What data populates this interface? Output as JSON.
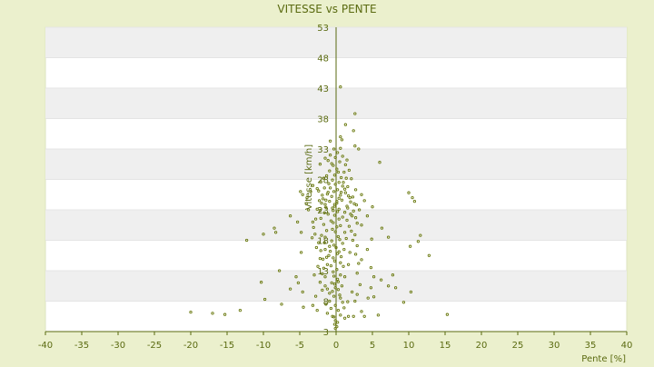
{
  "chart_data": {
    "type": "scatter",
    "title": "VITESSE vs PENTE",
    "xlabel": "Pente [%]",
    "ylabel": "Vitesse [km/h]",
    "xlim": [
      -40,
      40
    ],
    "ylim": [
      3,
      53
    ],
    "x_ticks": [
      -40,
      -35,
      -30,
      -25,
      -20,
      -15,
      -10,
      -5,
      0,
      5,
      10,
      15,
      20,
      25,
      30,
      35,
      40
    ],
    "y_ticks": [
      3,
      8,
      13,
      18,
      23,
      28,
      33,
      38,
      43,
      48,
      53
    ],
    "x_tick_labels": [
      "-40",
      "-35",
      "-30",
      "-25",
      "-20",
      "-15",
      "-10",
      "-5",
      "0",
      "5",
      "10",
      "15",
      "20",
      "25",
      "30",
      "35",
      "40"
    ],
    "y_tick_labels": [
      "3",
      "8",
      "13",
      "18",
      "23",
      "28",
      "33",
      "38",
      "43",
      "48",
      "53"
    ],
    "grid": "horizontal alternating bands",
    "legend": "none",
    "series": [
      {
        "marker_color": "#6b7a10",
        "points": [
          [
            -20,
            6.2
          ],
          [
            -17,
            6
          ],
          [
            -15.3,
            5.8
          ],
          [
            -13.2,
            6.5
          ],
          [
            -10.3,
            11.1
          ],
          [
            -9.8,
            8.3
          ],
          [
            -7.5,
            7.5
          ],
          [
            -7.8,
            13
          ],
          [
            -12.3,
            18
          ],
          [
            -10,
            19
          ],
          [
            -8.5,
            20
          ],
          [
            -8.3,
            19.3
          ],
          [
            -6.3,
            22
          ],
          [
            -4.6,
            25.5
          ],
          [
            -4.1,
            24
          ],
          [
            -3.8,
            23
          ],
          [
            -3.2,
            21
          ],
          [
            -2.9,
            19
          ],
          [
            -2.7,
            16.8
          ],
          [
            -2.2,
            15
          ],
          [
            -2.6,
            26.5
          ],
          [
            -3.2,
            27
          ],
          [
            -3.5,
            26
          ],
          [
            -4,
            25
          ],
          [
            -4.9,
            26
          ],
          [
            -5.3,
            21
          ],
          [
            -4.8,
            19.3
          ],
          [
            -4.8,
            16
          ],
          [
            -5.5,
            12
          ],
          [
            -6.3,
            10
          ],
          [
            -5.2,
            11
          ],
          [
            -4.6,
            9.5
          ],
          [
            -4.5,
            7
          ],
          [
            -3.2,
            7.3
          ],
          [
            -2.6,
            6.5
          ],
          [
            -1.2,
            6
          ],
          [
            -0.5,
            5.5
          ],
          [
            0.6,
            5.7
          ],
          [
            1.2,
            5.2
          ],
          [
            -0.9,
            8
          ],
          [
            -1.2,
            10
          ],
          [
            -1.5,
            12
          ],
          [
            -1.2,
            14
          ],
          [
            -1.5,
            16.5
          ],
          [
            -1.5,
            18.5
          ],
          [
            -0.9,
            17
          ],
          [
            -1,
            15.5
          ],
          [
            -2.2,
            30.5
          ],
          [
            -1.5,
            31.5
          ],
          [
            -0.8,
            32
          ],
          [
            -0.3,
            33
          ],
          [
            -0.8,
            34.3
          ],
          [
            0.8,
            34.5
          ],
          [
            0.6,
            35
          ],
          [
            2.4,
            36
          ],
          [
            2.6,
            38.8
          ],
          [
            0.6,
            43.2
          ],
          [
            1.3,
            37
          ],
          [
            2.6,
            33.5
          ],
          [
            3.1,
            33
          ],
          [
            6,
            30.8
          ],
          [
            10,
            25.8
          ],
          [
            10.5,
            25
          ],
          [
            10.8,
            24.4
          ],
          [
            6.3,
            20
          ],
          [
            7.2,
            18.5
          ],
          [
            11.3,
            17.8
          ],
          [
            11.6,
            18.8
          ],
          [
            10.2,
            17
          ],
          [
            12.8,
            15.5
          ],
          [
            7.8,
            12.3
          ],
          [
            7.2,
            10.5
          ],
          [
            8.2,
            10.2
          ],
          [
            10.3,
            9.5
          ],
          [
            9.3,
            7.8
          ],
          [
            15.3,
            5.8
          ],
          [
            5.8,
            5.7
          ],
          [
            3.9,
            5.5
          ],
          [
            3.5,
            6.3
          ],
          [
            2.4,
            5.5
          ],
          [
            1.7,
            5.5
          ],
          [
            5.2,
            12
          ],
          [
            4.8,
            13.5
          ],
          [
            3.5,
            14.8
          ],
          [
            4.3,
            16.5
          ],
          [
            4.9,
            18.2
          ],
          [
            2.2,
            9.5
          ],
          [
            2.6,
            8
          ],
          [
            0.9,
            7.8
          ],
          [
            4.4,
            8.5
          ],
          [
            5.2,
            8.7
          ],
          [
            4.8,
            10.2
          ],
          [
            6.2,
            11.5
          ],
          [
            5,
            23.5
          ],
          [
            4.3,
            22
          ],
          [
            3.9,
            24.5
          ],
          [
            3.5,
            20.5
          ],
          [
            3.5,
            25.5
          ],
          [
            3.2,
            23
          ],
          [
            2.7,
            26.3
          ],
          [
            2.5,
            24
          ],
          [
            2.2,
            22
          ],
          [
            2.1,
            19.5
          ],
          [
            2.3,
            18
          ],
          [
            1.9,
            16
          ],
          [
            1.7,
            14
          ],
          [
            1.2,
            12
          ],
          [
            0.8,
            10.5
          ],
          [
            0.5,
            9
          ],
          [
            -0.3,
            8.8
          ],
          [
            -0.6,
            11
          ],
          [
            -0.4,
            12.8
          ],
          [
            -0.2,
            14.6
          ],
          [
            0.2,
            15.8
          ],
          [
            -0.3,
            17.2
          ],
          [
            0.3,
            18.6
          ],
          [
            -0.5,
            19.8
          ],
          [
            0.6,
            20.4
          ],
          [
            -0.7,
            21.2
          ],
          [
            0.9,
            21.8
          ],
          [
            -1.1,
            22.3
          ],
          [
            1.2,
            22.6
          ],
          [
            -0.4,
            22.9
          ],
          [
            0.4,
            23.1
          ],
          [
            -1.4,
            23.4
          ],
          [
            1.5,
            23.6
          ],
          [
            -0.2,
            23.9
          ],
          [
            0.1,
            24.1
          ],
          [
            -0.9,
            24.4
          ],
          [
            0.8,
            24.6
          ],
          [
            -1.8,
            24.8
          ],
          [
            1.9,
            25
          ],
          [
            -0.6,
            25.2
          ],
          [
            0.6,
            25.4
          ],
          [
            -1.2,
            25.6
          ],
          [
            1.3,
            25.8
          ],
          [
            -0.3,
            26
          ],
          [
            0.2,
            26.3
          ],
          [
            -0.8,
            26.6
          ],
          [
            0.9,
            26.9
          ],
          [
            -0.1,
            27.2
          ],
          [
            0.4,
            27.5
          ],
          [
            -0.5,
            27.9
          ],
          [
            0.7,
            28.3
          ],
          [
            -0.2,
            28.7
          ],
          [
            0.3,
            29.2
          ],
          [
            0.1,
            29.7
          ],
          [
            -0.4,
            30.3
          ],
          [
            0.5,
            30.9
          ],
          [
            -0.1,
            31.6
          ],
          [
            0.2,
            32.4
          ],
          [
            0.6,
            33.1
          ],
          [
            1.5,
            31.2
          ],
          [
            1.8,
            29.5
          ],
          [
            2.1,
            28.1
          ],
          [
            -1.7,
            28.2
          ],
          [
            -2.1,
            27.6
          ],
          [
            -2.4,
            26.1
          ],
          [
            -2.3,
            24.5
          ],
          [
            -2.6,
            23.1
          ],
          [
            -2.8,
            21.5
          ],
          [
            -3.1,
            20.1
          ],
          [
            -3.3,
            18.4
          ],
          [
            -2.4,
            17.6
          ],
          [
            -2.1,
            16.3
          ],
          [
            -1.8,
            14.9
          ],
          [
            -2.5,
            13.7
          ],
          [
            -3,
            12.3
          ],
          [
            -2.2,
            11.1
          ],
          [
            -1.9,
            9.8
          ],
          [
            -2.8,
            8.8
          ],
          [
            -1.4,
            7.5
          ],
          [
            -0.7,
            6.8
          ],
          [
            0.3,
            6.5
          ],
          [
            1.1,
            6.9
          ],
          [
            1.6,
            7.9
          ],
          [
            2.9,
            9.1
          ],
          [
            3.3,
            10.7
          ],
          [
            2.9,
            12.6
          ],
          [
            3.1,
            14.2
          ],
          [
            2.7,
            15.7
          ],
          [
            2.9,
            17.1
          ],
          [
            2.6,
            18.9
          ],
          [
            2.9,
            20.8
          ],
          [
            2.7,
            21.7
          ],
          [
            2.4,
            22.8
          ],
          [
            2.8,
            23.8
          ],
          [
            2.3,
            25.1
          ],
          [
            1.7,
            25.3
          ],
          [
            2,
            24.3
          ],
          [
            1.6,
            23.3
          ],
          [
            2,
            22.3
          ],
          [
            1.5,
            21.3
          ],
          [
            1.8,
            20.3
          ],
          [
            1.2,
            19.3
          ],
          [
            1.4,
            18.3
          ],
          [
            0.9,
            17.5
          ],
          [
            1.1,
            16.5
          ],
          [
            0.7,
            15.3
          ],
          [
            1,
            13.7
          ],
          [
            0.6,
            12.3
          ],
          [
            0.3,
            11.2
          ],
          [
            -0.1,
            10.2
          ],
          [
            -0.9,
            9.3
          ],
          [
            -1.5,
            10.5
          ],
          [
            -1.9,
            12.5
          ],
          [
            -1.7,
            13.4
          ],
          [
            -1.3,
            15.2
          ],
          [
            -0.8,
            16.2
          ],
          [
            -1.6,
            17.6
          ],
          [
            -2,
            18.8
          ],
          [
            -1.3,
            19.6
          ],
          [
            -1.7,
            20.6
          ],
          [
            -2.1,
            21.6
          ],
          [
            -1.6,
            22.5
          ],
          [
            -2.2,
            22.9
          ],
          [
            -1.5,
            23.9
          ],
          [
            -2,
            24.1
          ],
          [
            -1.4,
            24.6
          ],
          [
            -1.9,
            25.4
          ],
          [
            -1.1,
            25.9
          ],
          [
            -1.6,
            26.6
          ],
          [
            -1,
            27.3
          ],
          [
            -1.3,
            28.6
          ],
          [
            -0.9,
            29.4
          ],
          [
            -0.6,
            30.6
          ],
          [
            -1.1,
            31.1
          ],
          [
            0.9,
            31.8
          ],
          [
            1.3,
            30.4
          ],
          [
            1.1,
            29.2
          ],
          [
            1.4,
            28.2
          ],
          [
            1,
            27.5
          ],
          [
            1.6,
            26.8
          ],
          [
            1.2,
            26.4
          ],
          [
            0.7,
            25.9
          ],
          [
            0.4,
            24.9
          ],
          [
            0.1,
            24.4
          ],
          [
            -0.2,
            23.6
          ],
          [
            -0.5,
            23.3
          ],
          [
            0.2,
            22.7
          ],
          [
            -0.2,
            22.1
          ],
          [
            0.4,
            21.5
          ],
          [
            -0.4,
            20.9
          ],
          [
            0.1,
            20.2
          ],
          [
            -0.1,
            19.4
          ],
          [
            0.5,
            18.1
          ],
          [
            -0.6,
            17.9
          ],
          [
            0,
            16.8
          ],
          [
            0.4,
            16.1
          ],
          [
            -0.4,
            15.1
          ],
          [
            0.6,
            14.3
          ],
          [
            -0.7,
            13.8
          ],
          [
            0.1,
            13.2
          ],
          [
            -0.3,
            12.1
          ],
          [
            0.2,
            11.6
          ],
          [
            -0.2,
            10.8
          ],
          [
            0.3,
            9.9
          ],
          [
            -0.5,
            9.6
          ],
          [
            0.6,
            8.5
          ],
          [
            -0.1,
            7.3
          ],
          [
            -0.3,
            5.4
          ],
          [
            -0.1,
            4.8
          ],
          [
            0.2,
            4.5
          ],
          [
            -0.2,
            4.2
          ],
          [
            0.1,
            3.8
          ],
          [
            -0.1,
            3.5
          ]
        ]
      }
    ]
  }
}
